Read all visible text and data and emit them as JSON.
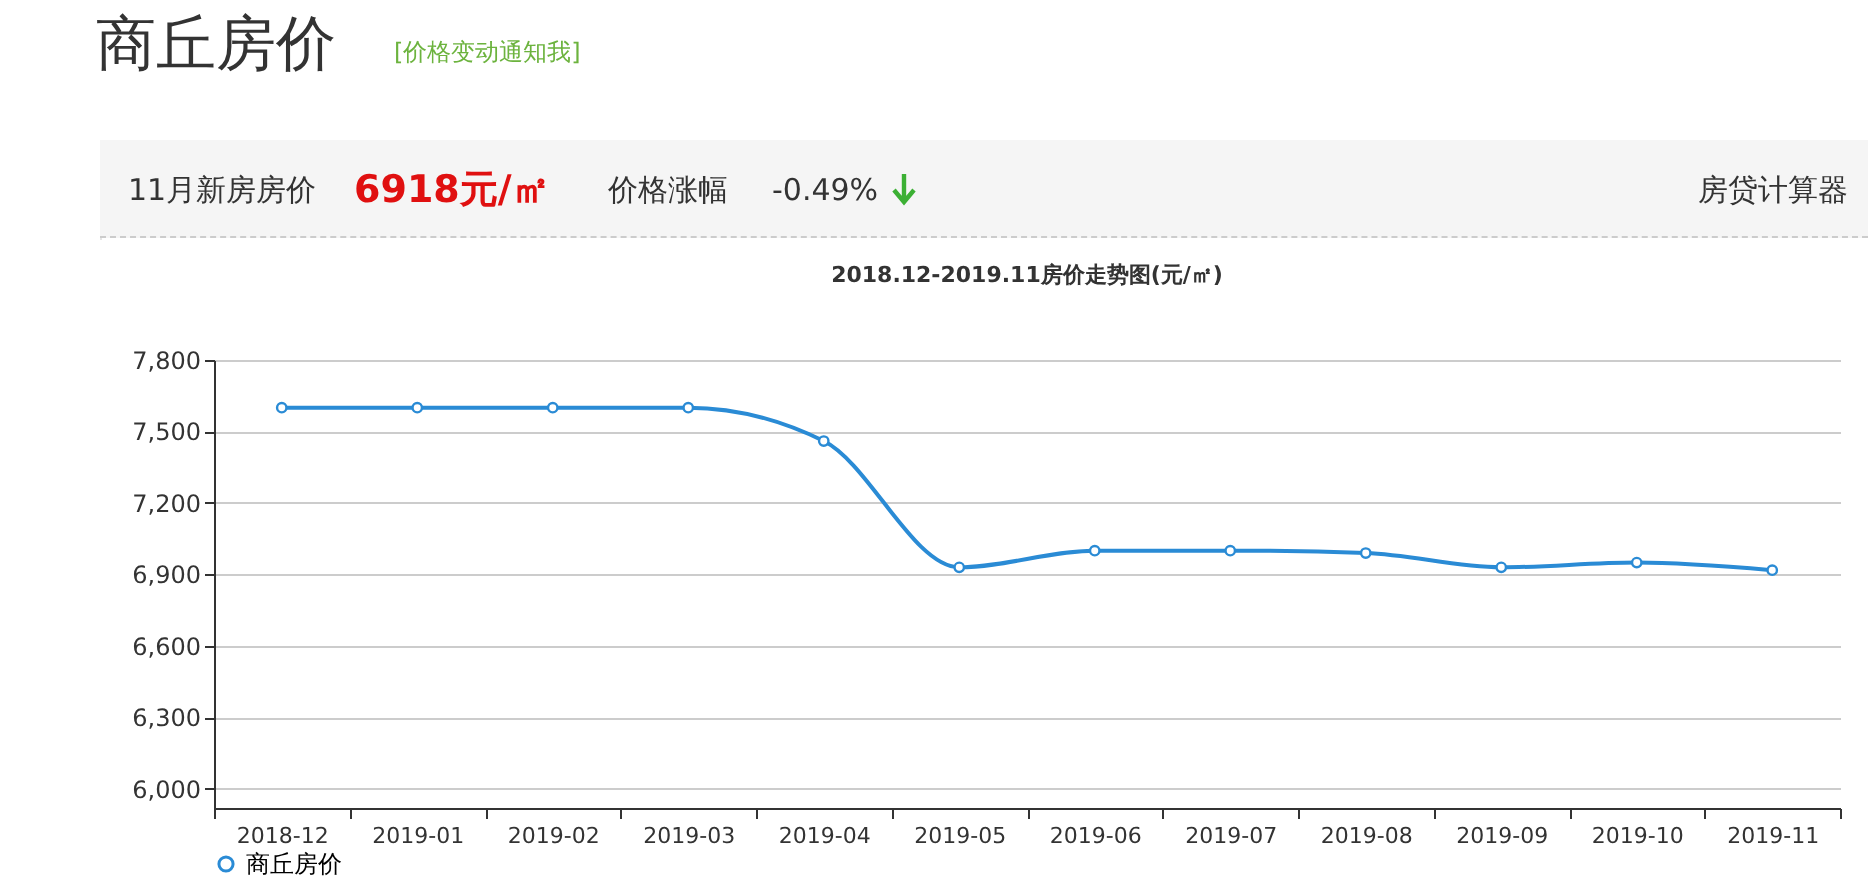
{
  "chart_data": {
    "type": "line",
    "title": "2018.12-2019.11房价走势图(元/㎡)",
    "annotations": [
      "商丘房价",
      "[价格变动通知我]",
      "11月新房房价",
      "6918元/㎡",
      "价格涨幅",
      "-0.49%",
      "房贷计算器"
    ],
    "categories": [
      "2018-12",
      "2019-01",
      "2019-02",
      "2019-03",
      "2019-04",
      "2019-05",
      "2019-06",
      "2019-07",
      "2019-08",
      "2019-09",
      "2019-10",
      "2019-11"
    ],
    "series": [
      {
        "name": "商丘房价",
        "color": "#2a8bd5",
        "values": [
          7600,
          7600,
          7600,
          7600,
          7460,
          6930,
          7000,
          7000,
          6990,
          6930,
          6950,
          6918
        ]
      }
    ],
    "ylim": [
      5920,
      7800
    ],
    "yticks": [
      {
        "value": 6000,
        "label": "6,000"
      },
      {
        "value": 6300,
        "label": "6,300"
      },
      {
        "value": 6600,
        "label": "6,600"
      },
      {
        "value": 6900,
        "label": "6,900"
      },
      {
        "value": 7200,
        "label": "7,200"
      },
      {
        "value": 7500,
        "label": "7,500"
      },
      {
        "value": 7800,
        "label": "7,800"
      }
    ],
    "grid": "y",
    "legend": "bottom",
    "marker": "circle"
  }
}
